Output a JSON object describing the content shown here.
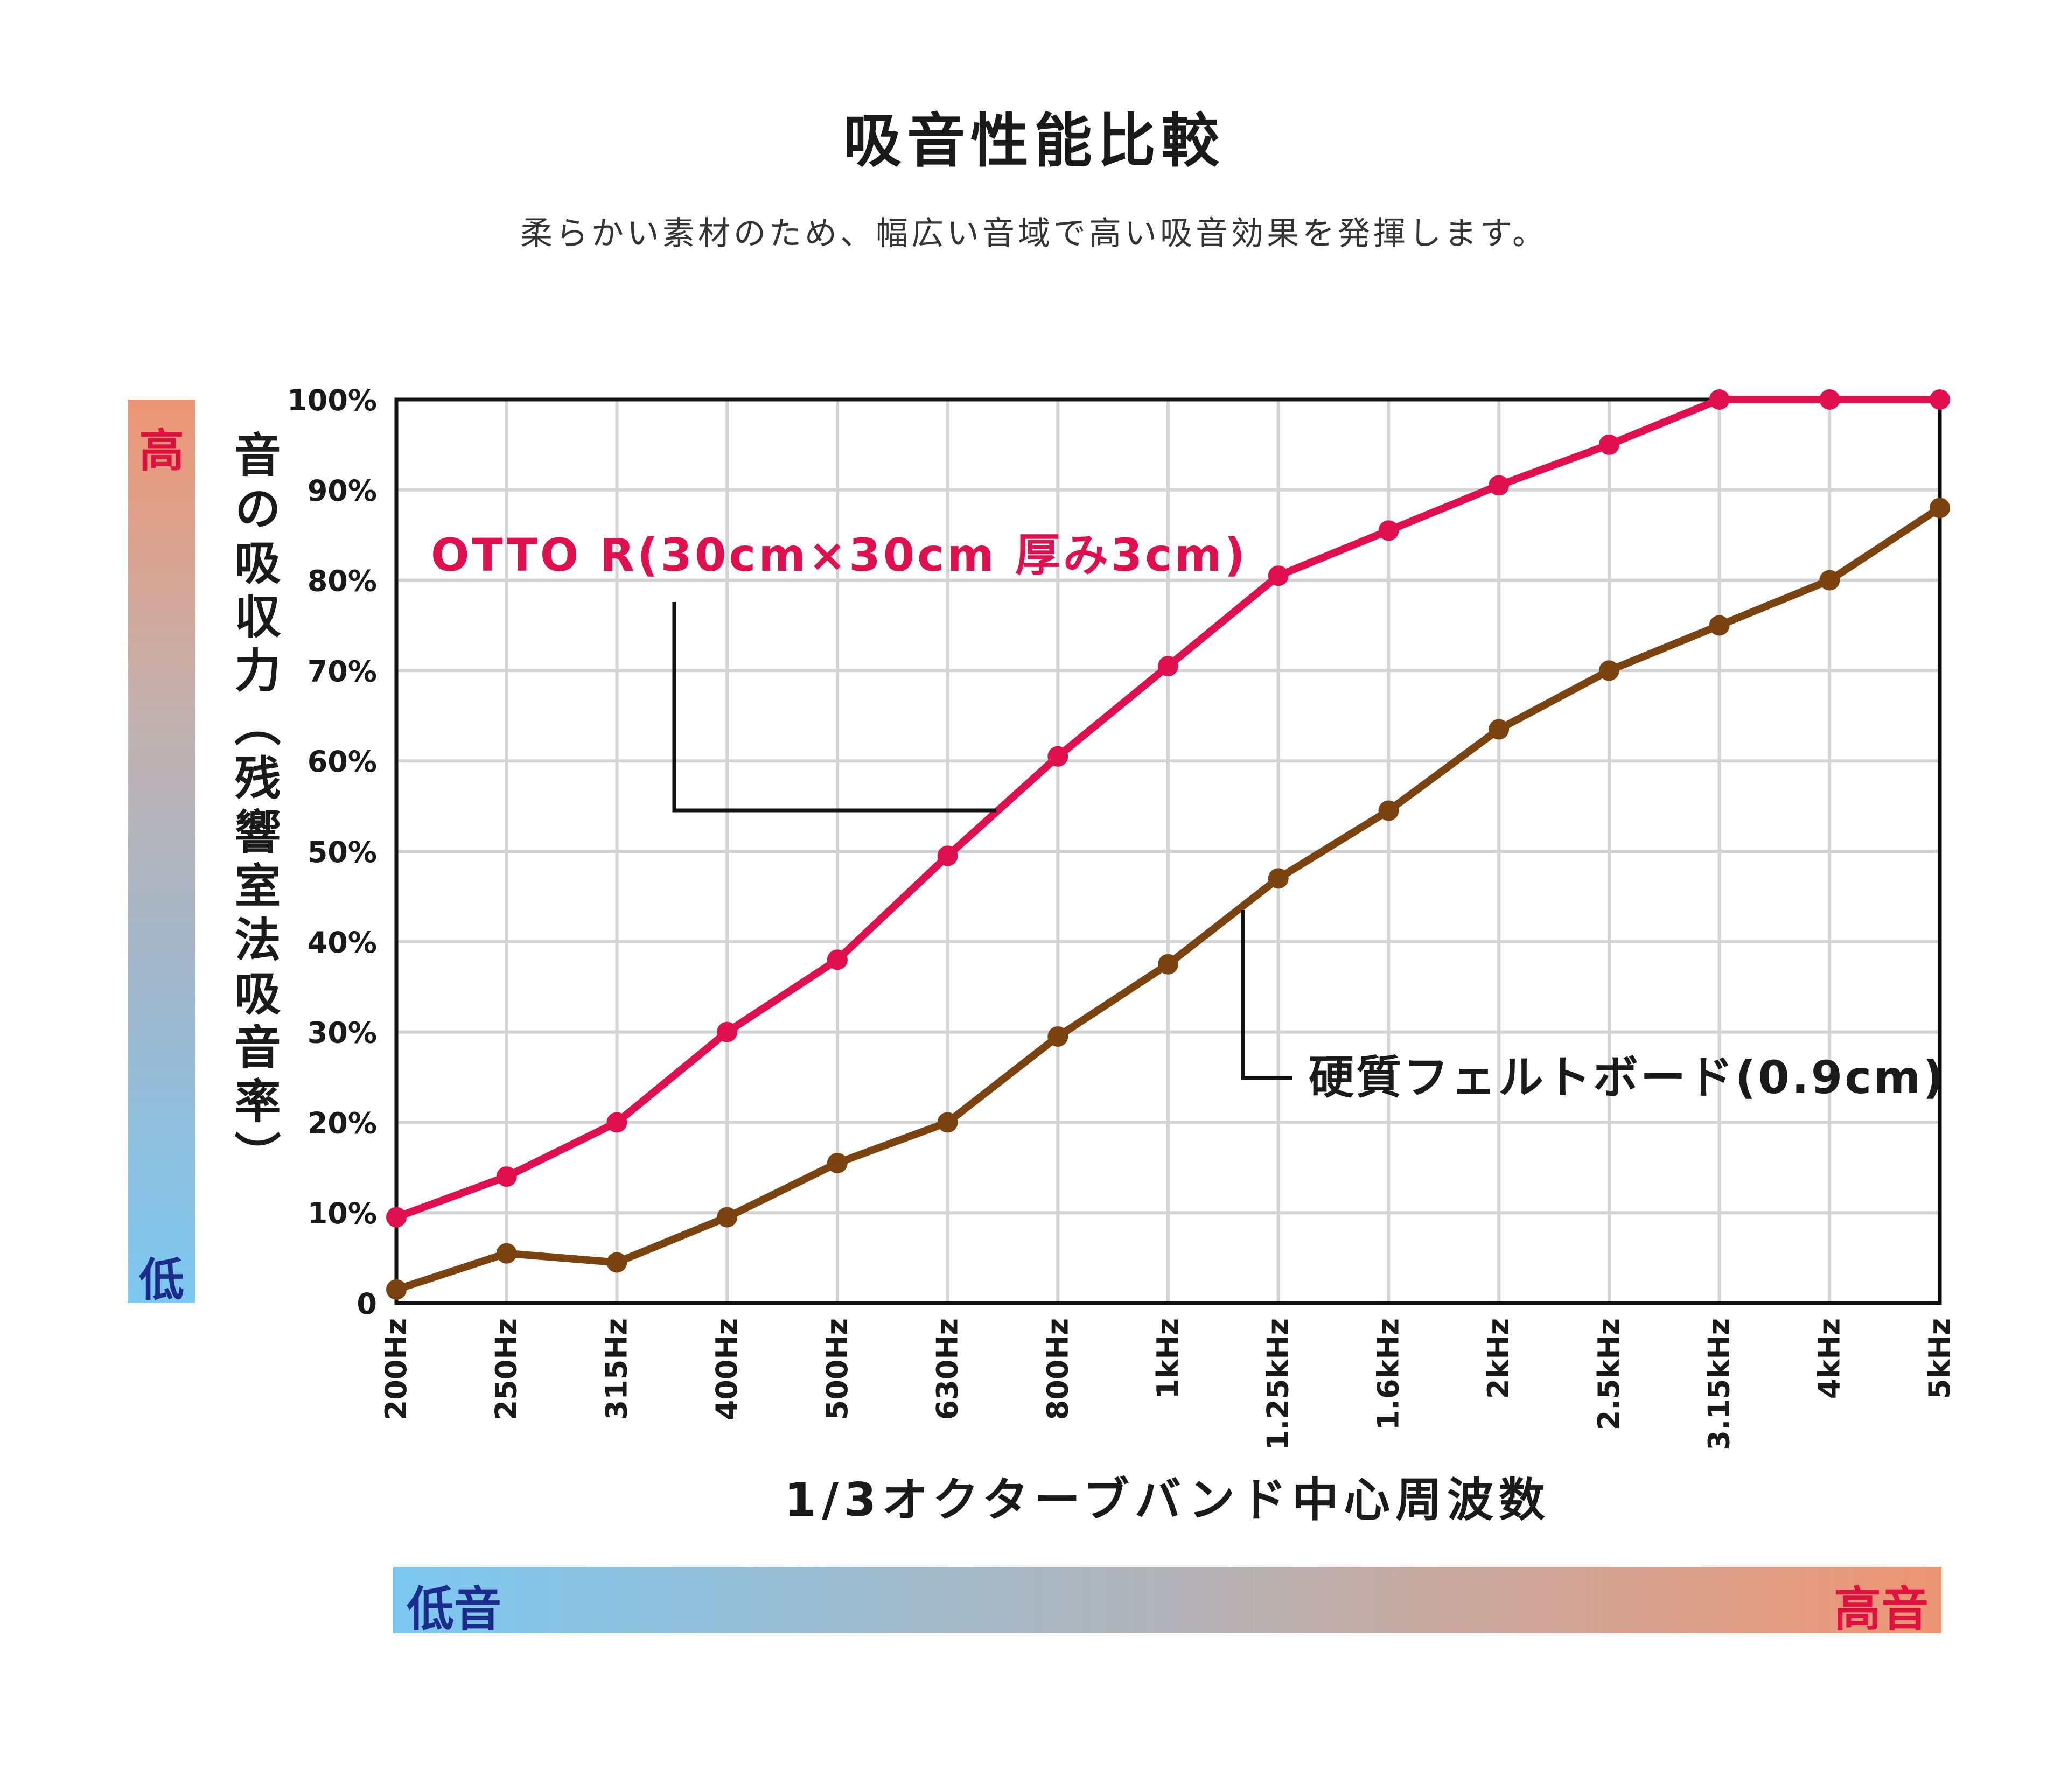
{
  "title": "吸音性能比較",
  "subtitle": "柔らかい素材のため、幅広い音域で高い吸音効果を発揮します。",
  "y_axis": {
    "title": "音の吸収力（残響室法吸音率）",
    "high_label": "高",
    "low_label": "低"
  },
  "x_axis": {
    "title": "1/3オクターブバンド中心周波数",
    "low_label": "低音",
    "high_label": "高音"
  },
  "colors": {
    "otto": "#e0104f",
    "felt": "#7b4310",
    "grid": "#d4d4d4",
    "high_text": "#e0103f",
    "low_text": "#1c2c8c"
  },
  "chart_data": {
    "type": "line",
    "categories": [
      "200Hz",
      "250Hz",
      "315Hz",
      "400Hz",
      "500Hz",
      "630Hz",
      "800Hz",
      "1kHz",
      "1.25kHz",
      "1.6kHz",
      "2kHz",
      "2.5kHz",
      "3.15kHz",
      "4kHz",
      "5kHz"
    ],
    "y_ticks": [
      "0",
      "10%",
      "20%",
      "30%",
      "40%",
      "50%",
      "60%",
      "70%",
      "80%",
      "90%",
      "100%"
    ],
    "ylim": [
      0,
      100
    ],
    "grid": true,
    "series": [
      {
        "name": "OTTO R(30cm×30cm 厚み3cm)",
        "color": "#e0104f",
        "values": [
          9.5,
          14,
          20,
          30,
          38,
          49.5,
          60.5,
          70.5,
          80.5,
          85.5,
          90.5,
          95,
          100,
          100,
          100
        ]
      },
      {
        "name": "硬質フェルトボード(0.9cm)",
        "color": "#7b4310",
        "values": [
          1.5,
          5.5,
          4.5,
          9.5,
          15.5,
          20,
          29.5,
          37.5,
          47,
          54.5,
          63.5,
          70,
          75,
          80,
          88
        ]
      }
    ]
  }
}
